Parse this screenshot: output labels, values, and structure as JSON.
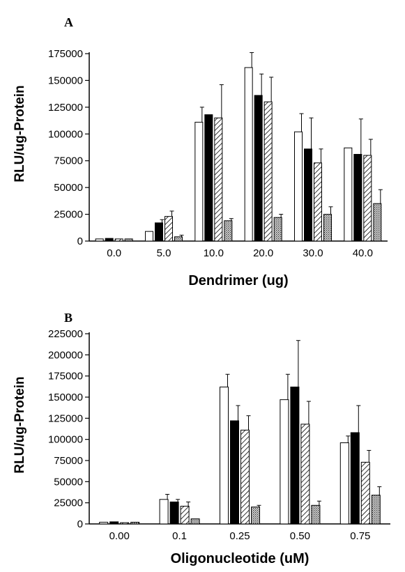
{
  "chart_data": [
    {
      "type": "bar",
      "panel_label": "A",
      "xlabel": "Dendrimer (ug)",
      "ylabel": "RLU/ug-Protein",
      "ylim": [
        0,
        175000
      ],
      "yticks": [
        "0",
        "25000",
        "50000",
        "75000",
        "100000",
        "125000",
        "150000",
        "175000"
      ],
      "categories": [
        "0.0",
        "5.0",
        "10.0",
        "20.0",
        "30.0",
        "40.0"
      ],
      "series": [
        {
          "fill": "white",
          "values": [
            2000,
            9000,
            111000,
            162000,
            102000,
            87000
          ],
          "errors": [
            0,
            0,
            14000,
            14000,
            17000,
            0
          ]
        },
        {
          "fill": "black",
          "values": [
            2500,
            17000,
            118000,
            136000,
            86000,
            81000
          ],
          "errors": [
            0,
            3000,
            0,
            20000,
            29000,
            33000
          ]
        },
        {
          "fill": "hatched",
          "values": [
            2000,
            23000,
            115000,
            130000,
            73000,
            80000
          ],
          "errors": [
            0,
            5000,
            31000,
            23000,
            13000,
            15000
          ]
        },
        {
          "fill": "dotted",
          "values": [
            2000,
            4000,
            19000,
            22000,
            25000,
            35000
          ],
          "errors": [
            0,
            1500,
            2000,
            3000,
            7000,
            13000
          ]
        }
      ]
    },
    {
      "type": "bar",
      "panel_label": "B",
      "xlabel": "Oligonucleotide (uM)",
      "ylabel": "RLU/ug-Protein",
      "ylim": [
        0,
        225000
      ],
      "yticks": [
        "0",
        "25000",
        "50000",
        "75000",
        "100000",
        "125000",
        "150000",
        "175000",
        "200000",
        "225000"
      ],
      "categories": [
        "0.00",
        "0.1",
        "0.25",
        "0.50",
        "0.75"
      ],
      "series": [
        {
          "fill": "white",
          "values": [
            2000,
            29000,
            162000,
            147000,
            96000
          ],
          "errors": [
            0,
            6000,
            15000,
            30000,
            8000
          ]
        },
        {
          "fill": "black",
          "values": [
            2500,
            26000,
            122000,
            162000,
            108000
          ],
          "errors": [
            0,
            3000,
            18000,
            55000,
            32000
          ]
        },
        {
          "fill": "hatched",
          "values": [
            1500,
            21000,
            111000,
            118000,
            73000
          ],
          "errors": [
            0,
            5000,
            17000,
            27000,
            14000
          ]
        },
        {
          "fill": "dotted",
          "values": [
            2000,
            6000,
            20000,
            22000,
            34000
          ],
          "errors": [
            0,
            0,
            2000,
            5000,
            10000
          ]
        }
      ]
    }
  ]
}
